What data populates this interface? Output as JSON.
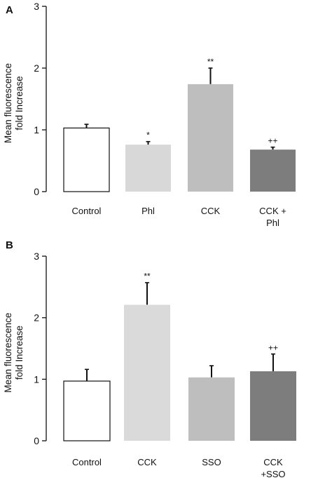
{
  "chart_data": [
    {
      "panel": "A",
      "type": "bar",
      "categories": [
        "Control",
        "Phl",
        "CCK",
        "CCK +\nPhl"
      ],
      "values": [
        1.03,
        0.76,
        1.74,
        0.68
      ],
      "errors": [
        0.06,
        0.05,
        0.26,
        0.04
      ],
      "annotations": [
        "",
        "*",
        "**",
        "++"
      ],
      "colors": [
        "#ffffff",
        "#d8d8d8",
        "#bebebe",
        "#7d7d7d"
      ],
      "ylabel": "Mean fluorescence\nfold Increase",
      "ylim": [
        0,
        3
      ],
      "yticks": [
        0,
        1,
        2,
        3
      ],
      "grid": false
    },
    {
      "panel": "B",
      "type": "bar",
      "categories": [
        "Control",
        "CCK",
        "SSO",
        "CCK\n+SSO"
      ],
      "values": [
        0.97,
        2.21,
        1.03,
        1.13
      ],
      "errors": [
        0.19,
        0.36,
        0.19,
        0.28
      ],
      "annotations": [
        "",
        "**",
        "",
        "++"
      ],
      "colors": [
        "#ffffff",
        "#dadada",
        "#bebebe",
        "#7d7d7d"
      ],
      "ylabel": "Mean fluorescence\nfold Increase",
      "ylim": [
        0,
        3
      ],
      "yticks": [
        0,
        1,
        2,
        3
      ],
      "grid": false
    }
  ]
}
